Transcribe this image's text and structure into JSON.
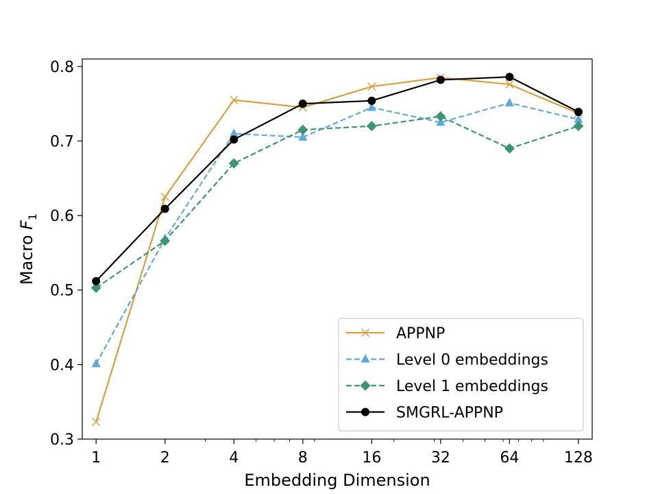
{
  "chart_data": {
    "type": "line",
    "title": "",
    "xlabel": "Embedding Dimension",
    "ylabel_prefix": "Macro ",
    "ylabel_var": "F",
    "ylabel_sub": "1",
    "x": [
      1,
      2,
      4,
      8,
      16,
      32,
      64,
      128
    ],
    "x_tick_labels": [
      "1",
      "2",
      "4",
      "8",
      "16",
      "32",
      "64",
      "128"
    ],
    "x_scale": "log2",
    "xlim": [
      0.87,
      147
    ],
    "ylim": [
      0.3,
      0.81
    ],
    "y_ticks": [
      0.3,
      0.4,
      0.5,
      0.6,
      0.7,
      0.8
    ],
    "y_tick_labels": [
      "0.3",
      "0.4",
      "0.5",
      "0.6",
      "0.7",
      "0.8"
    ],
    "grid": false,
    "legend_position": "bottom-right",
    "series": [
      {
        "name": "APPNP",
        "values": [
          0.323,
          0.625,
          0.755,
          0.745,
          0.773,
          0.785,
          0.776,
          0.737
        ],
        "color": "#d8a03c",
        "dash": "solid",
        "marker": "x"
      },
      {
        "name": "Level 0 embeddings",
        "values": [
          0.401,
          0.569,
          0.71,
          0.705,
          0.745,
          0.725,
          0.751,
          0.729
        ],
        "color": "#5da9dc",
        "dash": "dashed",
        "marker": "triangle"
      },
      {
        "name": "Level 1 embeddings",
        "values": [
          0.503,
          0.566,
          0.67,
          0.715,
          0.72,
          0.733,
          0.69,
          0.72
        ],
        "color": "#3b9571",
        "dash": "dashed",
        "marker": "diamond"
      },
      {
        "name": "SMGRL-APPNP",
        "values": [
          0.512,
          0.609,
          0.702,
          0.75,
          0.754,
          0.782,
          0.786,
          0.739
        ],
        "color": "#000000",
        "dash": "solid",
        "marker": "circle"
      }
    ]
  }
}
